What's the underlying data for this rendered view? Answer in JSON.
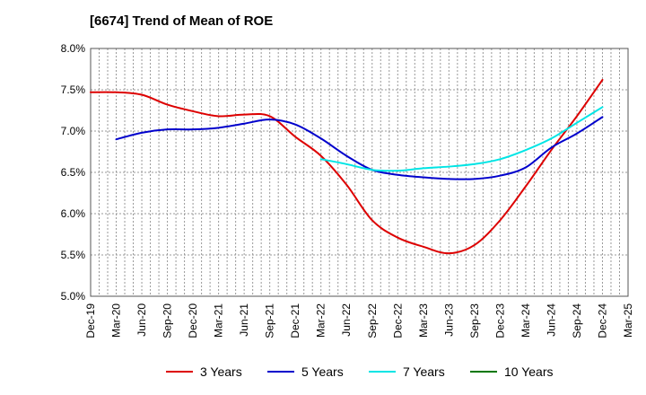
{
  "chart_data": {
    "type": "line",
    "title": "[6674]  Trend of Mean of ROE",
    "x_labels": [
      "Dec-19",
      "Mar-20",
      "Jun-20",
      "Sep-20",
      "Dec-20",
      "Mar-21",
      "Jun-21",
      "Sep-21",
      "Dec-21",
      "Mar-22",
      "Jun-22",
      "Sep-22",
      "Dec-22",
      "Mar-23",
      "Jun-23",
      "Sep-23",
      "Dec-23",
      "Mar-24",
      "Jun-24",
      "Sep-24",
      "Dec-24",
      "Mar-25"
    ],
    "y_ticks": [
      "5.0%",
      "5.5%",
      "6.0%",
      "6.5%",
      "7.0%",
      "7.5%",
      "8.0%"
    ],
    "ylim": [
      5.0,
      8.0
    ],
    "y_unit": "%",
    "grid": true,
    "legend_position": "bottom",
    "series": [
      {
        "name": "3 Years",
        "color": "#dd0000",
        "x": [
          "Dec-19",
          "Mar-20",
          "Jun-20",
          "Sep-20",
          "Dec-20",
          "Mar-21",
          "Jun-21",
          "Sep-21",
          "Dec-21",
          "Mar-22",
          "Jun-22",
          "Sep-22",
          "Dec-22",
          "Mar-23",
          "Jun-23",
          "Sep-23",
          "Dec-23",
          "Mar-24",
          "Jun-24",
          "Sep-24",
          "Dec-24"
        ],
        "values": [
          7.47,
          7.47,
          7.44,
          7.32,
          7.24,
          7.18,
          7.2,
          7.18,
          6.93,
          6.7,
          6.35,
          5.92,
          5.71,
          5.6,
          5.52,
          5.62,
          5.92,
          6.33,
          6.77,
          7.18,
          7.62
        ]
      },
      {
        "name": "5 Years",
        "color": "#0000cc",
        "x": [
          "Mar-20",
          "Jun-20",
          "Sep-20",
          "Dec-20",
          "Mar-21",
          "Jun-21",
          "Sep-21",
          "Dec-21",
          "Mar-22",
          "Jun-22",
          "Sep-22",
          "Dec-22",
          "Mar-23",
          "Jun-23",
          "Sep-23",
          "Dec-23",
          "Mar-24",
          "Jun-24",
          "Sep-24",
          "Dec-24"
        ],
        "values": [
          6.9,
          6.98,
          7.02,
          7.02,
          7.04,
          7.09,
          7.14,
          7.08,
          6.91,
          6.7,
          6.53,
          6.47,
          6.44,
          6.42,
          6.42,
          6.46,
          6.56,
          6.8,
          6.97,
          7.17
        ]
      },
      {
        "name": "7 Years",
        "color": "#00e5e5",
        "x": [
          "Mar-22",
          "Jun-22",
          "Sep-22",
          "Dec-22",
          "Mar-23",
          "Jun-23",
          "Sep-23",
          "Dec-23",
          "Mar-24",
          "Jun-24",
          "Sep-24",
          "Dec-24"
        ],
        "values": [
          6.66,
          6.6,
          6.53,
          6.52,
          6.55,
          6.57,
          6.6,
          6.66,
          6.77,
          6.91,
          7.1,
          7.29
        ]
      },
      {
        "name": "10 Years",
        "color": "#007700",
        "x": [],
        "values": []
      }
    ]
  }
}
